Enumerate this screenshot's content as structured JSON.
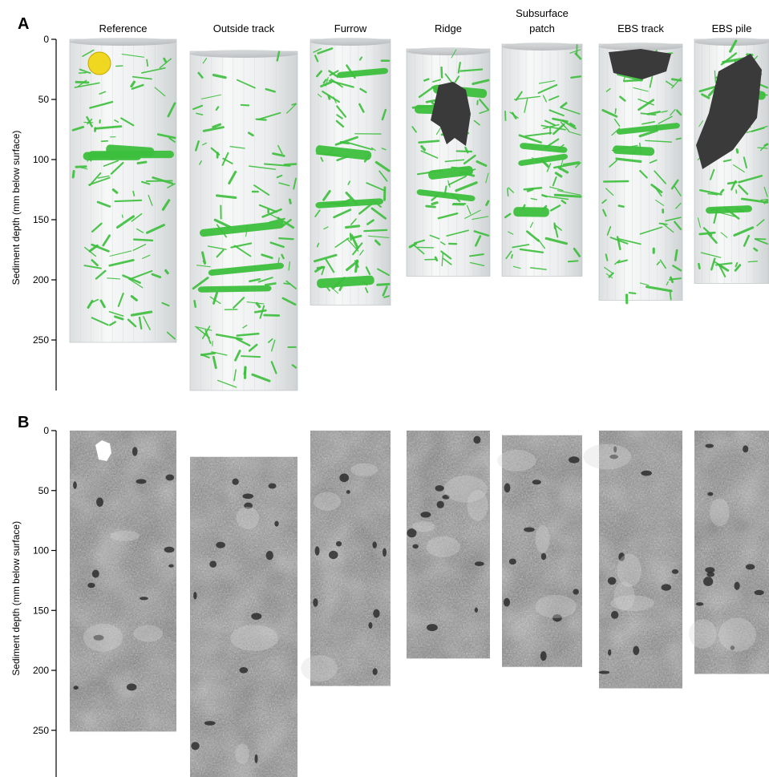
{
  "panels": [
    {
      "letter": "A",
      "kind": "3D reconstruction of burrows"
    },
    {
      "letter": "B",
      "kind": "CT cross-section images"
    }
  ],
  "columns": [
    {
      "title": "Reference",
      "depth_a": 252,
      "depth_b": 251,
      "top_a": 0,
      "top_b": 0
    },
    {
      "title": "Outside track",
      "depth_a": 292,
      "depth_b": 292,
      "top_a": 10,
      "top_b": 22
    },
    {
      "title": "Furrow",
      "depth_a": 221,
      "depth_b": 213,
      "top_a": 0,
      "top_b": 0
    },
    {
      "title": "Ridge",
      "depth_a": 197,
      "depth_b": 190,
      "top_a": 8,
      "top_b": 0
    },
    {
      "title": "Subsurface patch",
      "depth_a": 197,
      "depth_b": 197,
      "top_a": 4,
      "top_b": 4
    },
    {
      "title": "EBS track",
      "depth_a": 217,
      "depth_b": 215,
      "top_a": 4,
      "top_b": 0
    },
    {
      "title": "EBS pile",
      "depth_a": 203,
      "depth_b": 203,
      "top_a": 0,
      "top_b": 0
    }
  ],
  "axis": {
    "label": "Sediment depth (mm below surface)",
    "ticks": [
      "0",
      "50",
      "100",
      "150",
      "200",
      "250"
    ],
    "min": 0,
    "max": 290
  },
  "colors": {
    "burrow_green": "#3cbf3c",
    "yellow_feature": "#f0d820",
    "dark_feature": "#3a3a3a",
    "core_fill": "#eef0f0",
    "ct_gray": "#8a8a8a"
  }
}
